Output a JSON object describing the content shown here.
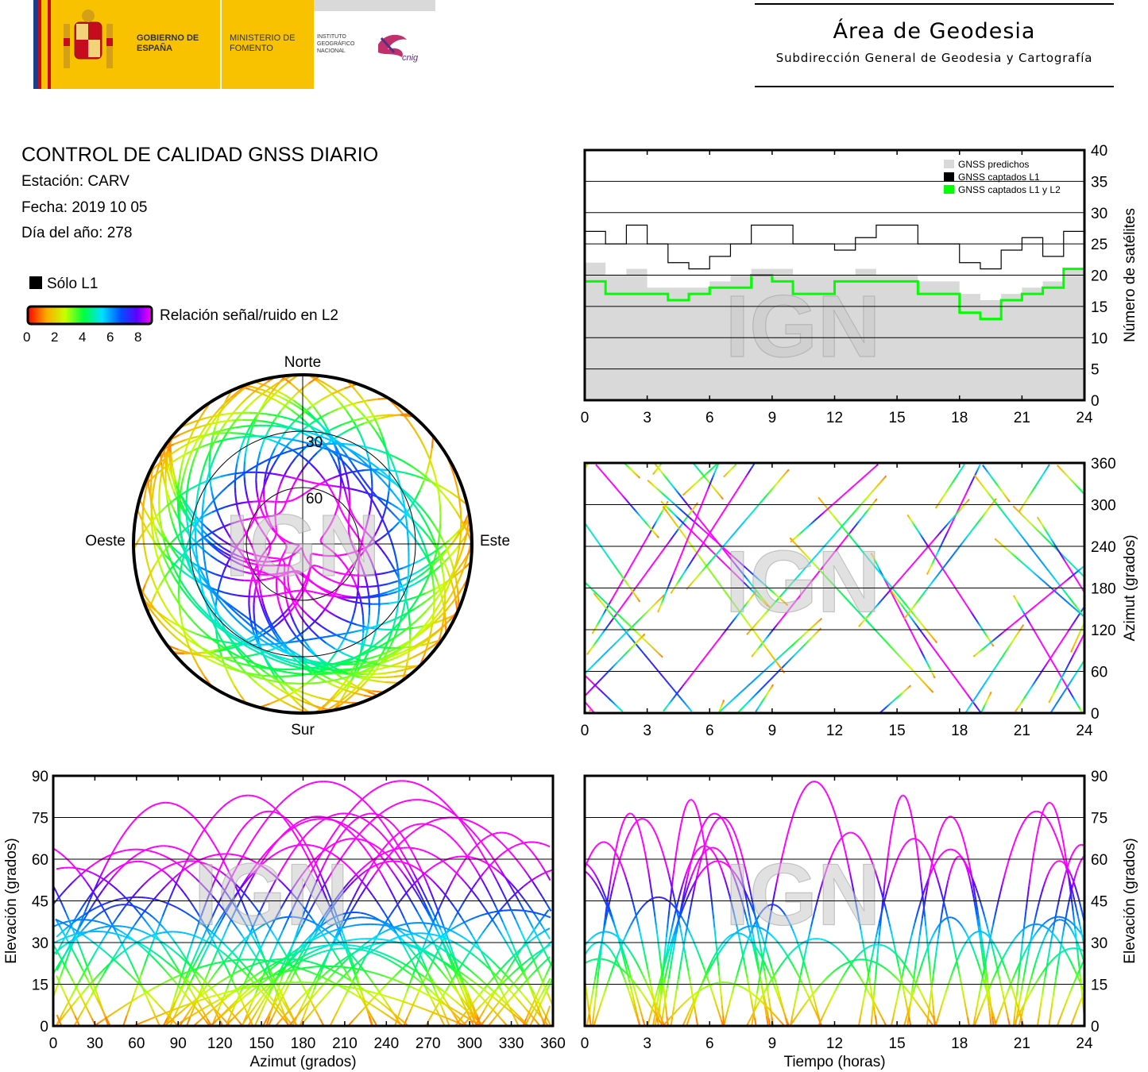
{
  "header": {
    "gobierno": "GOBIERNO DE ESPAÑA",
    "ministerio": "MINISTERIO DE FOMENTO",
    "instituto": "INSTITUTO GEOGRÁFICO NACIONAL",
    "cnig": "cnig",
    "area_title": "Área de Geodesia",
    "area_subtitle": "Subdirección General de Geodesia y Cartografía"
  },
  "info": {
    "title": "CONTROL DE CALIDAD GNSS DIARIO",
    "station": "Estación: CARV",
    "date": "Fecha: 2019 10 05",
    "doy": "Día del año: 278"
  },
  "legend": {
    "only_l1": "Sólo L1",
    "snr_label": "Relación señal/ruido en L2",
    "snr_ticks": [
      "0",
      "2",
      "4",
      "6",
      "8"
    ]
  },
  "watermark": "IGN",
  "chart_data": [
    {
      "type": "polar",
      "id": "skyplot",
      "directions": {
        "north": "Norte",
        "south": "Sur",
        "west": "Oeste",
        "east": "Este"
      },
      "ring_labels": [
        "30",
        "60"
      ],
      "description_series": "satellite tracks colored by L2 SNR"
    },
    {
      "type": "line",
      "id": "satellites",
      "xlabel": "",
      "ylabel": "Número de satélites",
      "xlim": [
        0,
        24
      ],
      "ylim": [
        0,
        40
      ],
      "xticks": [
        "0",
        "3",
        "6",
        "9",
        "12",
        "15",
        "18",
        "21",
        "24"
      ],
      "yticks": [
        "0",
        "5",
        "10",
        "15",
        "20",
        "25",
        "30",
        "35",
        "40"
      ],
      "legend": [
        "GNSS predichos",
        "GNSS captados L1",
        "GNSS captados L1 y L2"
      ],
      "colors": {
        "predicted": "#d9d9d9",
        "l1": "#000000",
        "l1l2": "#00ff00"
      },
      "x": [
        0,
        1,
        2,
        3,
        4,
        5,
        6,
        7,
        8,
        9,
        10,
        11,
        12,
        13,
        14,
        15,
        16,
        17,
        18,
        19,
        20,
        21,
        22,
        23,
        24
      ],
      "series": [
        {
          "name": "GNSS predichos",
          "values": [
            22,
            20,
            21,
            18,
            18,
            18,
            19,
            20,
            21,
            21,
            20,
            20,
            20,
            21,
            20,
            20,
            19,
            19,
            17,
            16,
            17,
            18,
            19,
            21,
            20
          ]
        },
        {
          "name": "GNSS captados L1",
          "values": [
            27,
            25,
            28,
            25,
            22,
            21,
            23,
            25,
            28,
            28,
            25,
            25,
            24,
            26,
            28,
            28,
            25,
            25,
            22,
            21,
            24,
            26,
            23,
            27,
            28
          ]
        },
        {
          "name": "GNSS captados L1 y L2",
          "values": [
            19,
            17,
            17,
            17,
            16,
            17,
            18,
            18,
            20,
            19,
            17,
            17,
            19,
            19,
            19,
            19,
            17,
            17,
            14,
            13,
            16,
            17,
            18,
            21,
            19
          ]
        }
      ]
    },
    {
      "type": "scatter",
      "id": "azimuth_time",
      "xlabel": "",
      "ylabel": "Azimut (grados)",
      "xlim": [
        0,
        24
      ],
      "ylim": [
        0,
        360
      ],
      "xticks": [
        "0",
        "3",
        "6",
        "9",
        "12",
        "15",
        "18",
        "21",
        "24"
      ],
      "yticks": [
        "0",
        "60",
        "120",
        "180",
        "240",
        "300",
        "360"
      ]
    },
    {
      "type": "scatter",
      "id": "elevation_azimuth",
      "xlabel": "Azimut (grados)",
      "ylabel": "Elevación (grados)",
      "xlim": [
        0,
        360
      ],
      "ylim": [
        0,
        90
      ],
      "xticks": [
        "0",
        "30",
        "60",
        "90",
        "120",
        "150",
        "180",
        "210",
        "240",
        "270",
        "300",
        "330",
        "360"
      ],
      "yticks": [
        "0",
        "15",
        "30",
        "45",
        "60",
        "75",
        "90"
      ]
    },
    {
      "type": "scatter",
      "id": "elevation_time",
      "xlabel": "Tiempo (horas)",
      "ylabel": "Elevación (grados)",
      "xlim": [
        0,
        24
      ],
      "ylim": [
        0,
        90
      ],
      "xticks": [
        "0",
        "3",
        "6",
        "9",
        "12",
        "15",
        "18",
        "21",
        "24"
      ],
      "yticks": [
        "0",
        "15",
        "30",
        "45",
        "60",
        "75",
        "90"
      ]
    }
  ]
}
